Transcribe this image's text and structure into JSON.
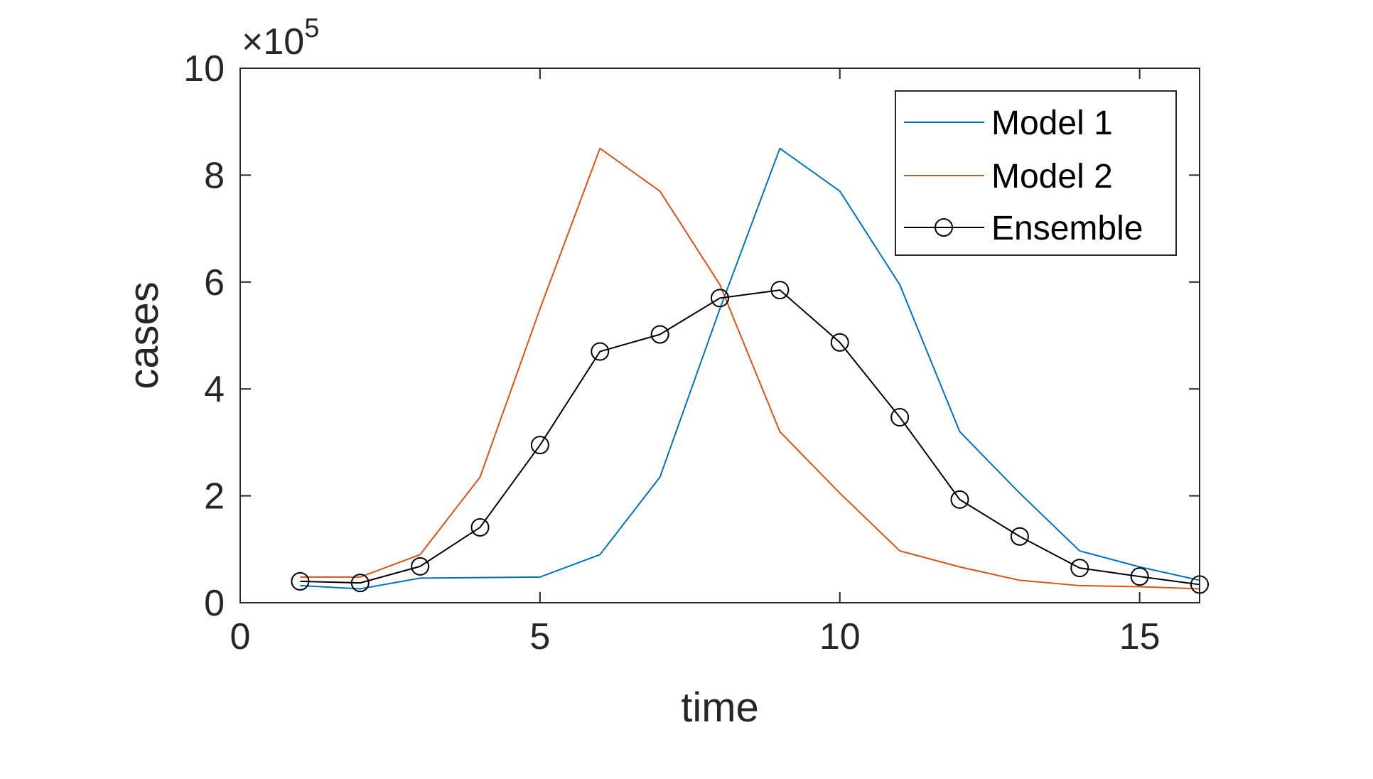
{
  "chart_data": {
    "type": "line",
    "title": "",
    "xlabel": "time",
    "ylabel": "cases",
    "y_exponent_label": "×10",
    "y_exponent_power": "5",
    "xlim": [
      0,
      16
    ],
    "ylim": [
      0,
      10
    ],
    "xticks": [
      0,
      5,
      10,
      15
    ],
    "yticks": [
      0,
      2,
      4,
      6,
      8,
      10
    ],
    "grid": false,
    "legend_position": "top-right",
    "x": [
      1,
      2,
      3,
      4,
      5,
      6,
      7,
      8,
      9,
      10,
      11,
      12,
      13,
      14,
      15,
      16
    ],
    "series": [
      {
        "name": "Model 1",
        "color": "#0072BD",
        "marker": "none",
        "values": [
          0.32,
          0.26,
          0.46,
          0.47,
          0.48,
          0.9,
          2.35,
          5.5,
          8.5,
          7.7,
          5.95,
          3.2,
          2.05,
          0.97,
          0.67,
          0.42
        ]
      },
      {
        "name": "Model 2",
        "color": "#D95319",
        "marker": "none",
        "values": [
          0.48,
          0.48,
          0.9,
          2.35,
          5.5,
          8.5,
          7.7,
          5.95,
          3.2,
          2.05,
          0.97,
          0.67,
          0.42,
          0.32,
          0.3,
          0.26
        ]
      },
      {
        "name": "Ensemble",
        "color": "#000000",
        "marker": "circle",
        "values": [
          0.4,
          0.37,
          0.68,
          1.41,
          2.95,
          4.7,
          5.02,
          5.7,
          5.85,
          4.87,
          3.47,
          1.93,
          1.24,
          0.65,
          0.49,
          0.34
        ]
      }
    ]
  }
}
